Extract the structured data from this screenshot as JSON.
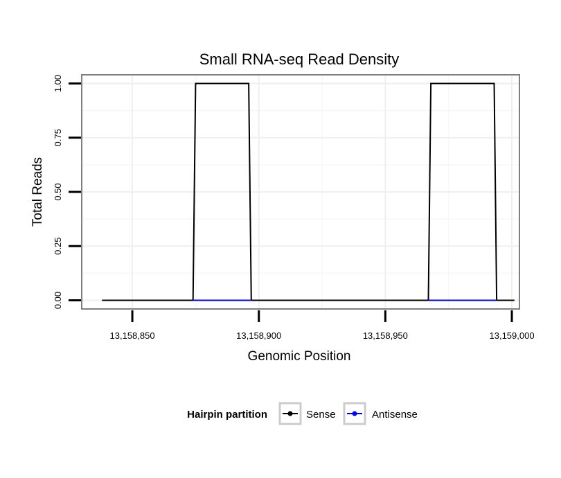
{
  "chart_data": {
    "type": "line",
    "title": "Small RNA-seq Read Density",
    "xlabel": "Genomic Position",
    "ylabel": "Total Reads",
    "xlim": [
      13158830,
      13159003
    ],
    "ylim": [
      -0.04,
      1.04
    ],
    "x_ticks": [
      13158850,
      13158900,
      13158950,
      13159000
    ],
    "x_tick_labels": [
      "13,158,850",
      "13,158,900",
      "13,158,950",
      "13,159,000"
    ],
    "y_ticks": [
      0,
      0.25,
      0.5,
      0.75,
      1
    ],
    "y_tick_labels": [
      "0.00",
      "0.25",
      "0.50",
      "0.75",
      "1.00"
    ],
    "grid": true,
    "legend_position": "bottom",
    "legend_title": "Hairpin partition",
    "series": [
      {
        "name": "Sense",
        "color": "#000000",
        "x": [
          13158838,
          13158874,
          13158875,
          13158896,
          13158897,
          13158967,
          13158968,
          13158993,
          13158994,
          13159001
        ],
        "y": [
          0,
          0,
          1,
          1,
          0,
          0,
          1,
          1,
          0,
          0
        ]
      },
      {
        "name": "Antisense",
        "color": "#0000ff",
        "x": [
          13158874,
          13158897,
          13158967,
          13158994
        ],
        "y": [
          0,
          0,
          0,
          0
        ],
        "segments": [
          [
            0,
            1
          ],
          [
            2,
            3
          ]
        ]
      }
    ]
  }
}
